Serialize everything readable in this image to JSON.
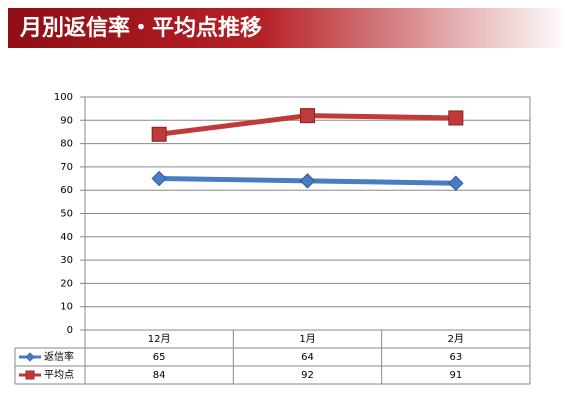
{
  "chart_data": {
    "type": "line",
    "title": "月別返信率・平均点推移",
    "categories": [
      "12月",
      "1月",
      "2月"
    ],
    "series": [
      {
        "name": "返信率",
        "color": "#4a7cc4",
        "marker": "diamond",
        "values": [
          65,
          64,
          63
        ]
      },
      {
        "name": "平均点",
        "color": "#c0393b",
        "marker": "square",
        "values": [
          84,
          92,
          91
        ]
      }
    ],
    "ylim": [
      0,
      100
    ],
    "yticks": [
      0,
      10,
      20,
      30,
      40,
      50,
      60,
      70,
      80,
      90,
      100
    ],
    "grid": true
  }
}
